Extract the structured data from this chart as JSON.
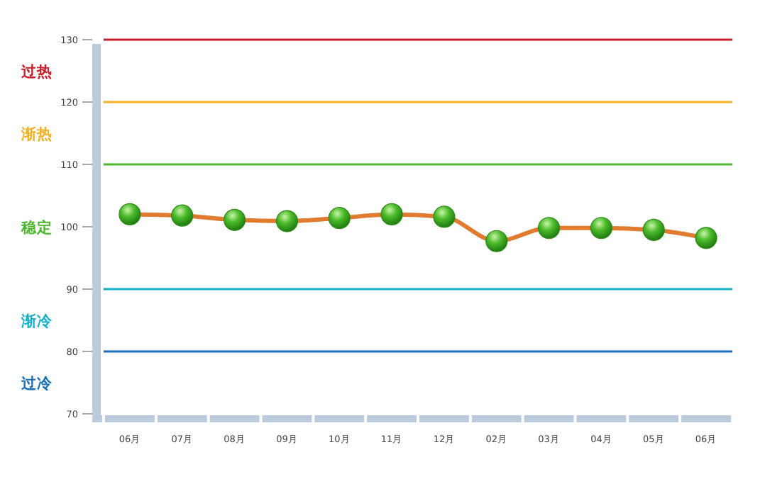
{
  "chart_data": {
    "type": "line",
    "categories": [
      "06月",
      "07月",
      "08月",
      "09月",
      "10月",
      "11月",
      "12月",
      "02月",
      "03月",
      "04月",
      "05月",
      "06月"
    ],
    "series": [
      {
        "color": "#e07b30",
        "values": [
          102.0,
          101.8,
          101.1,
          100.9,
          101.4,
          102.0,
          101.6,
          97.7,
          99.8,
          99.8,
          99.5,
          98.2
        ]
      }
    ],
    "ylim": [
      70,
      130
    ],
    "yticks": [
      70,
      80,
      90,
      100,
      110,
      120,
      130
    ],
    "marker": "circle",
    "ref_lines": [
      {
        "axis": "y",
        "value": 130,
        "color": "#c8202a"
      },
      {
        "axis": "y",
        "value": 120,
        "color": "#f0b020"
      },
      {
        "axis": "y",
        "value": 110,
        "color": "#50b830"
      },
      {
        "axis": "y",
        "value": 90,
        "color": "#18b0c8"
      },
      {
        "axis": "y",
        "value": 80,
        "color": "#1a6fb8"
      }
    ],
    "annotations": [
      "过热",
      "渐热",
      "稳定",
      "渐冷",
      "过冷"
    ]
  }
}
